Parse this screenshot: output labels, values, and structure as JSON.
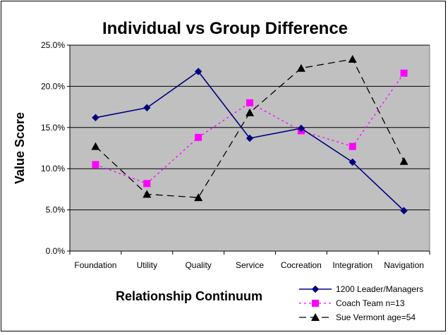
{
  "chart_data": {
    "type": "line",
    "title": "Individual vs Group Difference",
    "xlabel": "Relationship Continuum",
    "ylabel": "Value Score",
    "categories": [
      "Foundation",
      "Utility",
      "Quality",
      "Service",
      "Cocreation",
      "Integration",
      "Navigation"
    ],
    "ylim": [
      0,
      25
    ],
    "yticks": [
      "0.0%",
      "5.0%",
      "10.0%",
      "15.0%",
      "20.0%",
      "25.0%"
    ],
    "ytick_values": [
      0,
      5,
      10,
      15,
      20,
      25
    ],
    "grid": true,
    "legend_position": "bottom-right",
    "plot_background": "#c0c0c0",
    "series": [
      {
        "name": "1200 Leader/Managers",
        "values": [
          16.2,
          17.4,
          21.8,
          13.7,
          14.9,
          10.8,
          4.9
        ],
        "color": "#000080",
        "marker": "diamond",
        "dash": "solid"
      },
      {
        "name": "Coach Team n=13",
        "values": [
          10.5,
          8.2,
          13.8,
          18.0,
          14.6,
          12.7,
          21.6
        ],
        "color": "#ff00ff",
        "marker": "square",
        "dash": "dotted"
      },
      {
        "name": "Sue Vermont age=54",
        "values": [
          12.7,
          6.9,
          6.5,
          16.8,
          22.2,
          23.3,
          10.9
        ],
        "color": "#000000",
        "marker": "triangle",
        "dash": "dashed"
      }
    ]
  }
}
